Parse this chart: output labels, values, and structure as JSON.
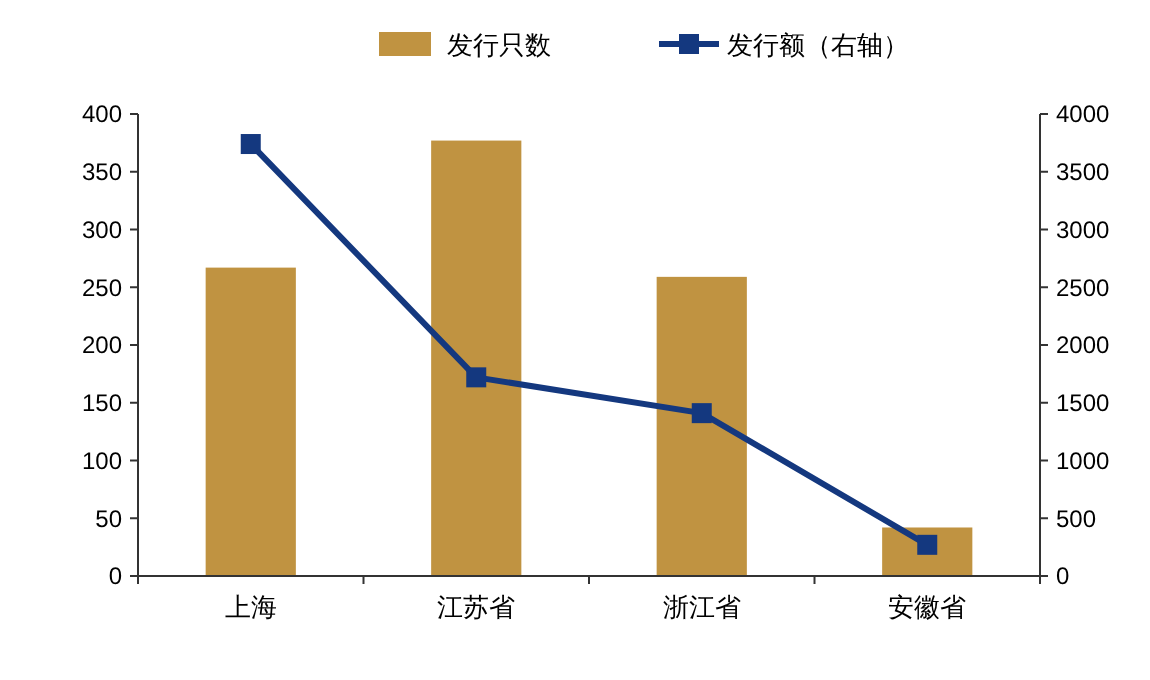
{
  "chart_data": {
    "type": "bar",
    "categories": [
      "上海",
      "江苏省",
      "浙江省",
      "安徽省"
    ],
    "series": [
      {
        "name": "发行只数",
        "color": "#c09341",
        "values": [
          267,
          377,
          259,
          42
        ]
      },
      {
        "name": "发行额（右轴）",
        "type": "line",
        "axis": "y2",
        "color": "#14387f",
        "marker": "square",
        "values": [
          3740,
          1720,
          1410,
          270
        ]
      }
    ],
    "ylim": [
      0,
      400
    ],
    "yticks": [
      0,
      50,
      100,
      150,
      200,
      250,
      300,
      350,
      400
    ],
    "y2lim": [
      0,
      4000
    ],
    "y2ticks": [
      0,
      500,
      1000,
      1500,
      2000,
      2500,
      3000,
      3500,
      4000
    ],
    "legend": "top",
    "grid": false
  }
}
